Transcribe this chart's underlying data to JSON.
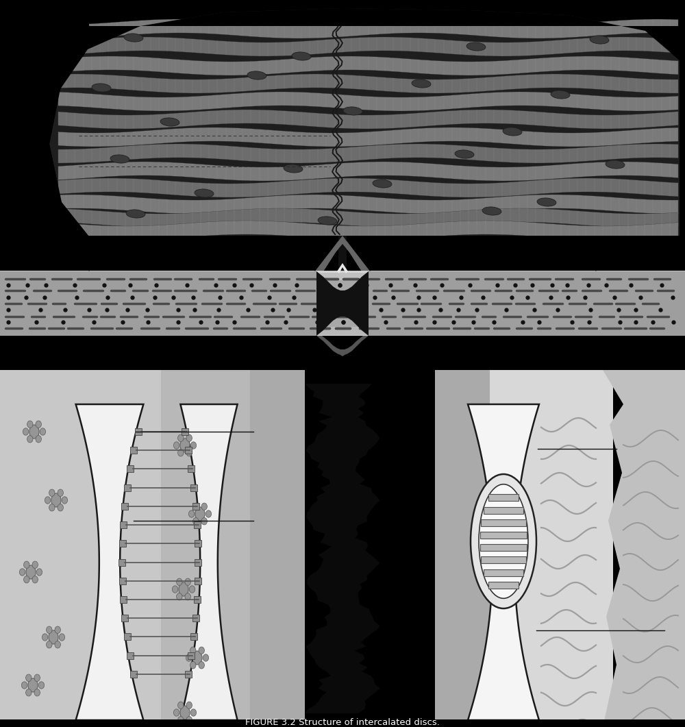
{
  "title": "FIGURE 3.2 Structure of intercalated discs.",
  "bg_color": "#000000",
  "figure_width": 10.0,
  "figure_height": 10.61,
  "dpi": 100
}
